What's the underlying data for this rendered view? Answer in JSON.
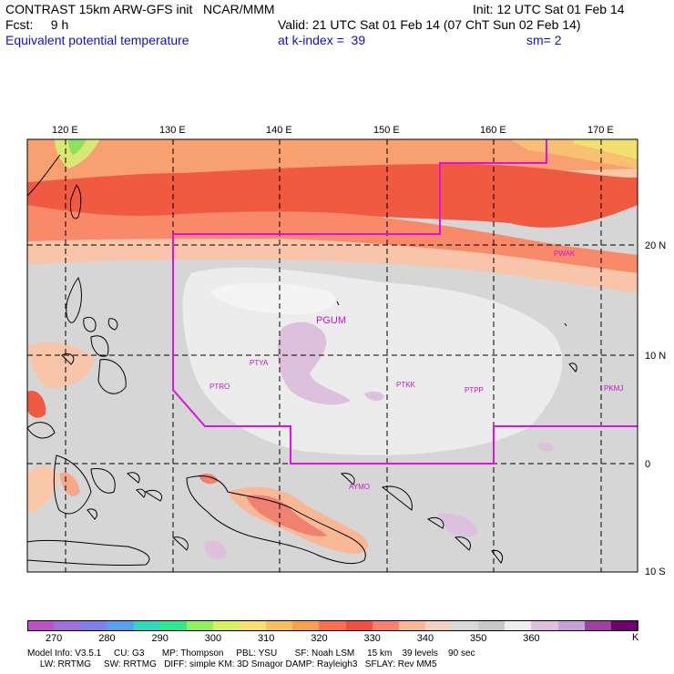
{
  "header": {
    "line1_left": "CONTRAST 15km ARW-GFS init   NCAR/MMM",
    "line1_right": "Init: 12 UTC Sat 01 Feb 14",
    "line2_left": "Fcst:     9 h",
    "line2_right": "Valid: 21 UTC Sat 01 Feb 14 (07 ChT Sun 02 Feb 14)",
    "line3_left": "Equivalent potential temperature",
    "line3_mid": "at k-index =  39",
    "line3_right": "sm= 2"
  },
  "map": {
    "lon_labels": [
      "120 E",
      "130 E",
      "140 E",
      "150 E",
      "160 E",
      "170 E"
    ],
    "lat_labels": [
      "20 N",
      "10 N",
      "0",
      "10 S"
    ],
    "stations": [
      "PGUM",
      "PTYA",
      "PTRO",
      "PTKK",
      "PTPP",
      "PKMJ",
      "PWAK",
      "AYMO"
    ],
    "colors": {
      "boundary": "#e010e0",
      "station": "#d010d0",
      "grid": "#000000"
    }
  },
  "colorbar": {
    "unit": "K",
    "tick_labels": [
      "270",
      "280",
      "290",
      "300",
      "310",
      "320",
      "330",
      "340",
      "350",
      "360"
    ],
    "colors": [
      "#c050c8",
      "#a070d8",
      "#8080e8",
      "#5aa0f0",
      "#30d8c0",
      "#30e890",
      "#90f060",
      "#d8f060",
      "#f8e070",
      "#f8c060",
      "#f8a050",
      "#f87050",
      "#f05040",
      "#f88070",
      "#f8b898",
      "#f0d0c0",
      "#d8d8d8",
      "#c8c8c8",
      "#eeeeee",
      "#e0c0e0",
      "#c8a0d8",
      "#a040a0",
      "#700070"
    ]
  },
  "footer": {
    "line1": "Model Info: V3.5.1     CU: G3       MP: Thompson     PBL: YSU       SF: Noah LSM     15 km    39 levels    90 sec",
    "line2": "     LW: RRTMG     SW: RRTMG   DIFF: simple KM: 3D Smagor DAMP: Rayleigh3   SFLAY: Rev MM5"
  }
}
